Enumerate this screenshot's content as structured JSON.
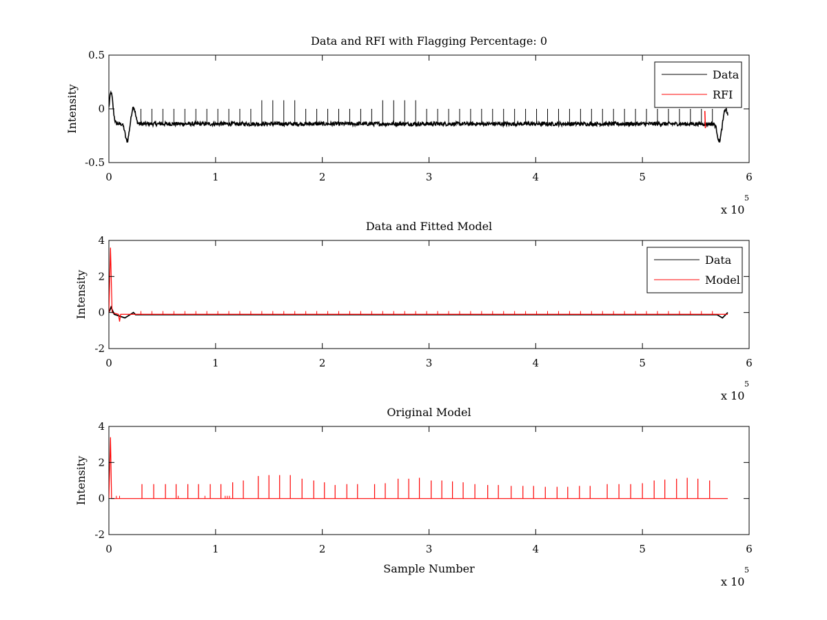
{
  "chart_data": [
    {
      "type": "line",
      "title": "Data and RFI with Flagging Percentage: 0",
      "xlabel": "",
      "ylabel": "Intensity",
      "xlim": [
        0,
        6
      ],
      "ylim": [
        -0.5,
        0.5
      ],
      "x_ticks": [
        "0",
        "1",
        "2",
        "3",
        "4",
        "5",
        "6"
      ],
      "y_ticks": [
        "-0.5",
        "0",
        "0.5"
      ],
      "x_multiplier": {
        "base": "x 10",
        "exponent": "5"
      },
      "legend": {
        "position": "top-right",
        "entries": [
          {
            "name": "Data",
            "color": "#000000"
          },
          {
            "name": "RFI",
            "color": "#ff0000"
          }
        ]
      },
      "series": [
        {
          "name": "Data",
          "color": "#000000",
          "baseline": -0.14,
          "noise": 0.018,
          "x_end": 5.8,
          "spikes": {
            "start": 0.3,
            "step": 0.103,
            "count": 53,
            "height": 0.14,
            "tall_height": 0.22
          },
          "features": [
            {
              "x": 0.02,
              "y": 0.15
            },
            {
              "x": 0.17,
              "y": -0.3
            },
            {
              "x": 0.23,
              "y": 0.02
            },
            {
              "x": 5.72,
              "y": -0.3
            },
            {
              "x": 5.78,
              "y": 0.0
            }
          ]
        },
        {
          "name": "RFI",
          "color": "#ff0000",
          "points": [
            {
              "x": 5.585,
              "y": -0.02
            },
            {
              "x": 5.59,
              "y": -0.18
            }
          ]
        }
      ]
    },
    {
      "type": "line",
      "title": "Data and Fitted Model",
      "xlabel": "",
      "ylabel": "Intensity",
      "xlim": [
        0,
        6
      ],
      "ylim": [
        -2,
        4
      ],
      "x_ticks": [
        "0",
        "1",
        "2",
        "3",
        "4",
        "5",
        "6"
      ],
      "y_ticks": [
        "-2",
        "0",
        "2",
        "4"
      ],
      "x_multiplier": {
        "base": "x 10",
        "exponent": "5"
      },
      "legend": {
        "position": "top-right",
        "entries": [
          {
            "name": "Data",
            "color": "#000000"
          },
          {
            "name": "Model",
            "color": "#ff0000"
          }
        ]
      },
      "series": [
        {
          "name": "Data",
          "color": "#000000",
          "baseline": -0.12,
          "x_end": 5.8
        },
        {
          "name": "Model",
          "color": "#ff0000",
          "baseline": -0.1,
          "x_end": 5.8,
          "peak": {
            "x": 0.015,
            "y": 3.6
          },
          "dip": {
            "x": 0.1,
            "y": -0.5
          }
        }
      ]
    },
    {
      "type": "line",
      "title": "Original Model",
      "xlabel": "Sample Number",
      "ylabel": "Intensity",
      "xlim": [
        0,
        6
      ],
      "ylim": [
        -2,
        4
      ],
      "x_ticks": [
        "0",
        "1",
        "2",
        "3",
        "4",
        "5",
        "6"
      ],
      "y_ticks": [
        "-2",
        "0",
        "2",
        "4"
      ],
      "x_multiplier": {
        "base": "x 10",
        "exponent": "5"
      },
      "legend": null,
      "series": [
        {
          "name": "Model",
          "color": "#ff0000",
          "baseline": 0.0,
          "x_end": 5.8,
          "peak": {
            "x": 0.015,
            "y": 3.4
          },
          "spikes": [
            {
              "x": 0.31,
              "y": 0.8
            },
            {
              "x": 0.42,
              "y": 0.8
            },
            {
              "x": 0.53,
              "y": 0.8
            },
            {
              "x": 0.63,
              "y": 0.8
            },
            {
              "x": 0.74,
              "y": 0.8
            },
            {
              "x": 0.84,
              "y": 0.8
            },
            {
              "x": 0.95,
              "y": 0.8
            },
            {
              "x": 1.05,
              "y": 0.8
            },
            {
              "x": 1.16,
              "y": 0.9
            },
            {
              "x": 1.26,
              "y": 1.0
            },
            {
              "x": 1.4,
              "y": 1.25
            },
            {
              "x": 1.5,
              "y": 1.3
            },
            {
              "x": 1.6,
              "y": 1.3
            },
            {
              "x": 1.7,
              "y": 1.3
            },
            {
              "x": 1.81,
              "y": 1.1
            },
            {
              "x": 1.92,
              "y": 1.0
            },
            {
              "x": 2.02,
              "y": 0.9
            },
            {
              "x": 2.12,
              "y": 0.75
            },
            {
              "x": 2.23,
              "y": 0.8
            },
            {
              "x": 2.33,
              "y": 0.8
            },
            {
              "x": 2.49,
              "y": 0.8
            },
            {
              "x": 2.59,
              "y": 0.85
            },
            {
              "x": 2.71,
              "y": 1.1
            },
            {
              "x": 2.81,
              "y": 1.1
            },
            {
              "x": 2.91,
              "y": 1.15
            },
            {
              "x": 3.02,
              "y": 1.0
            },
            {
              "x": 3.12,
              "y": 1.0
            },
            {
              "x": 3.22,
              "y": 0.95
            },
            {
              "x": 3.32,
              "y": 0.9
            },
            {
              "x": 3.43,
              "y": 0.8
            },
            {
              "x": 3.55,
              "y": 0.75
            },
            {
              "x": 3.65,
              "y": 0.75
            },
            {
              "x": 3.77,
              "y": 0.7
            },
            {
              "x": 3.88,
              "y": 0.7
            },
            {
              "x": 3.98,
              "y": 0.7
            },
            {
              "x": 4.09,
              "y": 0.65
            },
            {
              "x": 4.2,
              "y": 0.65
            },
            {
              "x": 4.3,
              "y": 0.65
            },
            {
              "x": 4.41,
              "y": 0.7
            },
            {
              "x": 4.51,
              "y": 0.7
            },
            {
              "x": 4.67,
              "y": 0.8
            },
            {
              "x": 4.78,
              "y": 0.8
            },
            {
              "x": 4.89,
              "y": 0.8
            },
            {
              "x": 5.0,
              "y": 0.85
            },
            {
              "x": 5.11,
              "y": 1.0
            },
            {
              "x": 5.21,
              "y": 1.05
            },
            {
              "x": 5.32,
              "y": 1.1
            },
            {
              "x": 5.42,
              "y": 1.15
            },
            {
              "x": 5.52,
              "y": 1.1
            },
            {
              "x": 5.63,
              "y": 1.0
            }
          ]
        }
      ]
    }
  ]
}
